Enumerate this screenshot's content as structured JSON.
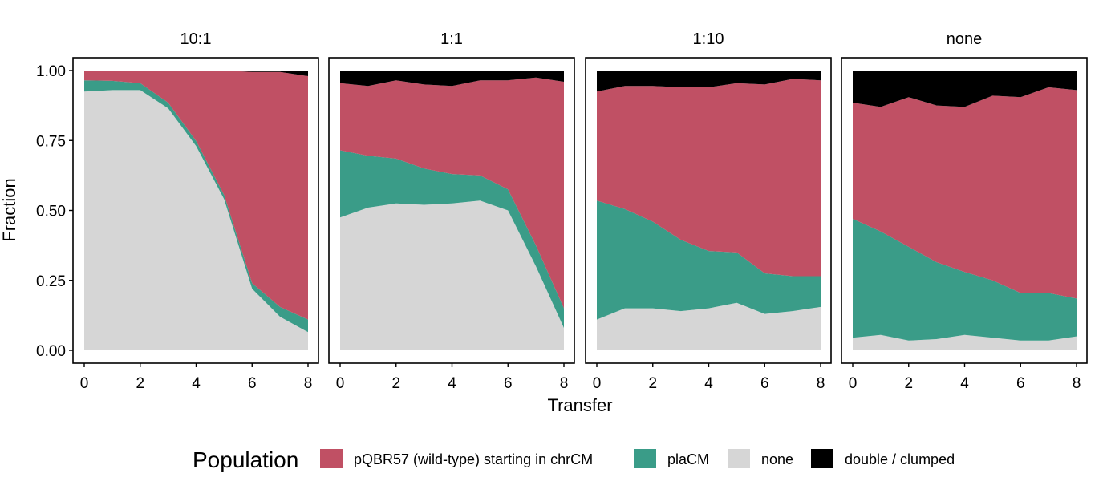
{
  "chart_data": {
    "type": "area",
    "stacked": true,
    "xlabel": "Transfer",
    "ylabel": "Fraction",
    "xlim": [
      0,
      8
    ],
    "ylim": [
      0,
      1
    ],
    "x_ticks": [
      0,
      2,
      4,
      6,
      8
    ],
    "y_ticks": [
      "0.00",
      "0.25",
      "0.50",
      "0.75",
      "1.00"
    ],
    "x": [
      0,
      1,
      2,
      3,
      4,
      5,
      6,
      7,
      8
    ],
    "legend": {
      "title": "Population",
      "position": "bottom",
      "entries": [
        {
          "key": "pqbr57",
          "label": "pQBR57 (wild-type) starting in chrCM",
          "color": "#C05064"
        },
        {
          "key": "placm",
          "label": "plaCM",
          "color": "#3A9C88"
        },
        {
          "key": "none",
          "label": "none",
          "color": "#D6D6D6"
        },
        {
          "key": "double",
          "label": "double / clumped",
          "color": "#000000"
        }
      ]
    },
    "stack_order": [
      "none",
      "placm",
      "pqbr57",
      "double"
    ],
    "facets": [
      {
        "title": "10:1",
        "series": {
          "none": [
            0.925,
            0.93,
            0.93,
            0.865,
            0.73,
            0.54,
            0.22,
            0.12,
            0.065
          ],
          "placm": [
            0.04,
            0.033,
            0.025,
            0.02,
            0.018,
            0.015,
            0.02,
            0.035,
            0.045
          ],
          "pqbr57": [
            0.035,
            0.037,
            0.045,
            0.115,
            0.252,
            0.445,
            0.755,
            0.84,
            0.87
          ],
          "double": [
            0.0,
            0.0,
            0.0,
            0.0,
            0.0,
            0.0,
            0.005,
            0.005,
            0.02
          ]
        }
      },
      {
        "title": "1:1",
        "series": {
          "none": [
            0.475,
            0.51,
            0.525,
            0.52,
            0.525,
            0.535,
            0.5,
            0.3,
            0.08
          ],
          "placm": [
            0.24,
            0.185,
            0.16,
            0.13,
            0.105,
            0.09,
            0.075,
            0.075,
            0.07
          ],
          "pqbr57": [
            0.24,
            0.25,
            0.28,
            0.3,
            0.315,
            0.34,
            0.39,
            0.6,
            0.81
          ],
          "double": [
            0.045,
            0.055,
            0.035,
            0.05,
            0.055,
            0.035,
            0.035,
            0.025,
            0.04
          ]
        }
      },
      {
        "title": "1:10",
        "series": {
          "none": [
            0.11,
            0.15,
            0.15,
            0.14,
            0.15,
            0.17,
            0.13,
            0.14,
            0.155
          ],
          "placm": [
            0.425,
            0.355,
            0.31,
            0.255,
            0.205,
            0.18,
            0.145,
            0.125,
            0.11
          ],
          "pqbr57": [
            0.39,
            0.44,
            0.485,
            0.545,
            0.585,
            0.605,
            0.675,
            0.705,
            0.7
          ],
          "double": [
            0.075,
            0.055,
            0.055,
            0.06,
            0.06,
            0.045,
            0.05,
            0.03,
            0.035
          ]
        }
      },
      {
        "title": "none",
        "series": {
          "none": [
            0.045,
            0.055,
            0.035,
            0.04,
            0.055,
            0.045,
            0.035,
            0.035,
            0.05
          ],
          "placm": [
            0.425,
            0.37,
            0.335,
            0.275,
            0.225,
            0.205,
            0.17,
            0.17,
            0.135
          ],
          "pqbr57": [
            0.415,
            0.445,
            0.535,
            0.56,
            0.59,
            0.66,
            0.7,
            0.735,
            0.745
          ],
          "double": [
            0.115,
            0.13,
            0.095,
            0.125,
            0.13,
            0.09,
            0.095,
            0.06,
            0.07
          ]
        }
      }
    ]
  }
}
